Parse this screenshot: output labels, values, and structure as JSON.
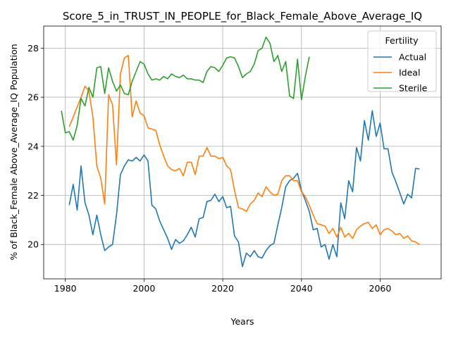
{
  "chart_data": {
    "type": "line",
    "title": "Score_5_in_TRUST_IN_PEOPLE_for_Black_Female_Above_Average_IQ",
    "xlabel": "Years",
    "ylabel": "% of Black_Female Above_Average_IQ Population",
    "xlim": [
      1974.5,
      2075.5
    ],
    "ylim": [
      18.6,
      28.9
    ],
    "xticks": [
      1980,
      2000,
      2020,
      2040,
      2060
    ],
    "yticks": [
      20,
      22,
      24,
      26,
      28
    ],
    "grid": true,
    "legend": {
      "title": "Fertility",
      "placement": "top-right"
    },
    "series": [
      {
        "name": "Actual",
        "color": "#1f77b4",
        "x": [
          1981,
          1982,
          1983,
          1984,
          1985,
          1986,
          1987,
          1988,
          1989,
          1990,
          1991,
          1992,
          1993,
          1994,
          1995,
          1996,
          1997,
          1998,
          1999,
          2000,
          2001,
          2002,
          2003,
          2004,
          2005,
          2006,
          2007,
          2008,
          2009,
          2010,
          2011,
          2012,
          2013,
          2014,
          2015,
          2016,
          2017,
          2018,
          2019,
          2020,
          2021,
          2022,
          2023,
          2024,
          2025,
          2026,
          2027,
          2028,
          2029,
          2030,
          2031,
          2032,
          2033,
          2034,
          2035,
          2036,
          2037,
          2038,
          2039,
          2040,
          2041,
          2042,
          2043,
          2044,
          2045,
          2046,
          2047,
          2048,
          2049,
          2050,
          2051,
          2052,
          2053,
          2054,
          2055,
          2056,
          2057,
          2058,
          2059,
          2060,
          2061,
          2062,
          2063,
          2064,
          2065,
          2066,
          2067,
          2068,
          2069,
          2070
        ],
        "values": [
          21.6,
          22.45,
          21.4,
          23.2,
          21.7,
          21.2,
          20.4,
          21.2,
          20.4,
          19.75,
          19.9,
          20.0,
          21.2,
          22.85,
          23.2,
          23.45,
          23.4,
          23.55,
          23.4,
          23.65,
          23.4,
          21.6,
          21.45,
          20.95,
          20.6,
          20.25,
          19.8,
          20.2,
          20.05,
          20.15,
          20.4,
          20.7,
          20.3,
          21.05,
          21.1,
          21.75,
          21.8,
          22.05,
          21.75,
          21.95,
          21.5,
          21.55,
          20.35,
          20.1,
          19.1,
          19.65,
          19.5,
          19.75,
          19.5,
          19.45,
          19.75,
          19.95,
          20.05,
          20.8,
          21.5,
          22.35,
          22.6,
          22.7,
          22.9,
          22.2,
          21.8,
          21.35,
          20.6,
          20.65,
          19.9,
          20.0,
          19.4,
          20.0,
          19.5,
          21.7,
          21.05,
          22.6,
          22.15,
          23.95,
          23.4,
          25.05,
          24.25,
          25.45,
          24.4,
          24.95,
          23.9,
          23.9,
          22.95,
          22.55,
          22.1,
          21.65,
          22.05,
          21.9,
          23.1,
          23.08
        ]
      },
      {
        "name": "Ideal",
        "color": "#ff7f0e",
        "x": [
          1981,
          1982,
          1983,
          1984,
          1985,
          1986,
          1987,
          1988,
          1989,
          1990,
          1991,
          1992,
          1993,
          1994,
          1995,
          1996,
          1997,
          1998,
          1999,
          2000,
          2001,
          2002,
          2003,
          2004,
          2005,
          2006,
          2007,
          2008,
          2009,
          2010,
          2011,
          2012,
          2013,
          2014,
          2015,
          2016,
          2017,
          2018,
          2019,
          2020,
          2021,
          2022,
          2023,
          2024,
          2025,
          2026,
          2027,
          2028,
          2029,
          2030,
          2031,
          2032,
          2033,
          2034,
          2035,
          2036,
          2037,
          2038,
          2039,
          2040,
          2041,
          2042,
          2043,
          2044,
          2045,
          2046,
          2047,
          2048,
          2049,
          2050,
          2051,
          2052,
          2053,
          2054,
          2055,
          2056,
          2057,
          2058,
          2059,
          2060,
          2061,
          2062,
          2063,
          2064,
          2065,
          2066,
          2067,
          2068,
          2069,
          2070
        ],
        "values": [
          24.8,
          25.2,
          25.6,
          26.0,
          26.45,
          26.25,
          25.2,
          23.2,
          22.7,
          21.65,
          26.1,
          25.7,
          23.25,
          26.95,
          27.6,
          27.7,
          25.2,
          25.85,
          25.35,
          25.25,
          24.75,
          24.7,
          24.65,
          24.05,
          23.6,
          23.2,
          23.05,
          23.0,
          23.1,
          22.8,
          23.35,
          23.35,
          22.85,
          23.6,
          23.6,
          23.95,
          23.6,
          23.6,
          23.5,
          23.55,
          23.2,
          23.05,
          22.2,
          21.5,
          21.45,
          21.35,
          21.65,
          21.8,
          22.1,
          21.95,
          22.35,
          22.15,
          22.0,
          22.05,
          22.6,
          22.8,
          22.8,
          22.6,
          22.6,
          22.15,
          21.95,
          21.6,
          21.2,
          20.85,
          20.8,
          20.75,
          20.45,
          20.65,
          20.3,
          20.7,
          20.3,
          20.45,
          20.25,
          20.6,
          20.75,
          20.85,
          20.9,
          20.65,
          20.8,
          20.4,
          20.6,
          20.65,
          20.55,
          20.4,
          20.45,
          20.25,
          20.35,
          20.15,
          20.1,
          20.0
        ]
      },
      {
        "name": "Sterile",
        "color": "#2ca02c",
        "x": [
          1979,
          1980,
          1981,
          1982,
          1983,
          1984,
          1985,
          1986,
          1987,
          1988,
          1989,
          1990,
          1991,
          1992,
          1993,
          1994,
          1995,
          1996,
          1997,
          1998,
          1999,
          2000,
          2001,
          2002,
          2003,
          2004,
          2005,
          2006,
          2007,
          2008,
          2009,
          2010,
          2011,
          2012,
          2013,
          2014,
          2015,
          2016,
          2017,
          2018,
          2019,
          2020,
          2021,
          2022,
          2023,
          2024,
          2025,
          2026,
          2027,
          2028,
          2029,
          2030,
          2031,
          2032,
          2033,
          2034,
          2035,
          2036,
          2037,
          2038,
          2039,
          2040,
          2041,
          2042
        ],
        "values": [
          25.45,
          24.55,
          24.6,
          24.25,
          24.85,
          25.95,
          25.65,
          26.4,
          26.0,
          27.2,
          27.25,
          26.15,
          27.2,
          26.65,
          26.25,
          26.5,
          26.15,
          26.1,
          26.65,
          27.05,
          27.45,
          27.35,
          26.95,
          26.7,
          26.75,
          26.7,
          26.85,
          26.75,
          26.95,
          26.85,
          26.8,
          26.9,
          26.75,
          26.75,
          26.7,
          26.7,
          26.6,
          27.05,
          27.25,
          27.2,
          27.05,
          27.3,
          27.6,
          27.65,
          27.6,
          27.25,
          26.8,
          26.95,
          27.05,
          27.35,
          27.9,
          28.0,
          28.45,
          28.2,
          27.45,
          27.7,
          27.05,
          27.45,
          26.05,
          25.95,
          27.55,
          25.9,
          26.85,
          27.65
        ]
      }
    ]
  }
}
